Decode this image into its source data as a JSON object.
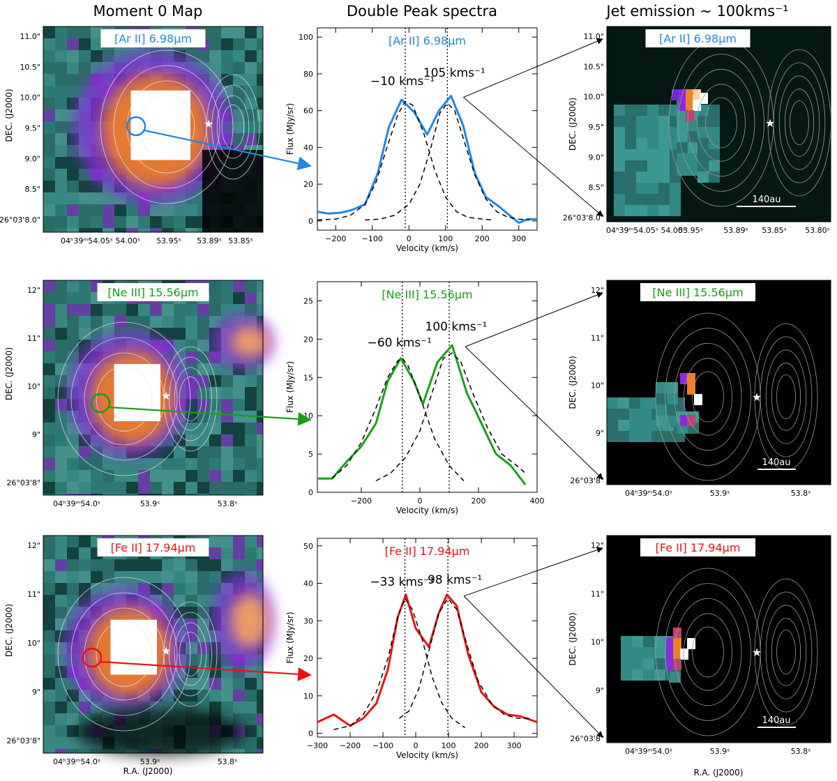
{
  "headers": {
    "col1": "Moment 0 Map",
    "col2": "Double Peak spectra",
    "col3": "Jet emission ~ 100kms⁻¹"
  },
  "xlabel_ra": "R.A. (J2000)",
  "ylabel_dec": "DEC. (J2000)",
  "scale_bar": "140au",
  "colors": {
    "ar": "#1e88e5",
    "ne": "#16a016",
    "fe": "#ee1111",
    "teal": "#2e7d78",
    "purple": "#8a2be2",
    "orange": "#f08020"
  },
  "rows": [
    {
      "line_label": "[Ar II] 6.98μm",
      "color_key": "ar",
      "map_yticks": [
        "11.0\"",
        "10.5\"",
        "10.0\"",
        "9.5\"",
        "9.0\"",
        "8.5\"",
        "26°03'8.0\""
      ],
      "map_xticks": [
        "04ʰ39ᵐ54.05ˢ 54.00ˢ",
        "53.95ˢ",
        "53.89ˢ",
        "53.85ˢ"
      ],
      "jet_xticks": [
        "04ʰ39ᵐ54.05ˢ 54.00ˢ",
        "53.95ˢ",
        "53.89ˢ",
        "53.85ˢ",
        "53.80ˢ"
      ]
    },
    {
      "line_label": "[Ne III] 15.56μm",
      "color_key": "ne",
      "map_yticks": [
        "12\"",
        "11\"",
        "10\"",
        "9\"",
        "26°03'8\""
      ],
      "map_xticks": [
        "04ʰ39ᵐ54.0ˢ",
        "53.9ˢ",
        "53.8ˢ"
      ],
      "jet_xticks": [
        "04ʰ39ᵐ54.0ˢ",
        "53.9ˢ",
        "53.8ˢ"
      ]
    },
    {
      "line_label": "[Fe II] 17.94μm",
      "color_key": "fe",
      "map_yticks": [
        "12\"",
        "11\"",
        "10\"",
        "9\"",
        "26°03'8\""
      ],
      "map_xticks": [
        "04ʰ39ᵐ54.0ˢ",
        "53.9ˢ",
        "53.8ˢ"
      ],
      "jet_xticks": [
        "04ʰ39ᵐ54.0ˢ",
        "53.9ˢ",
        "53.8ˢ"
      ]
    }
  ],
  "chart_data": [
    {
      "type": "line",
      "title": "[Ar II] 6.98μm",
      "xlabel": "Velocity (km/s)",
      "ylabel": "Flux (MJy/sr)",
      "xlim": [
        -250,
        350
      ],
      "ylim": [
        -5,
        105
      ],
      "xticks": [
        -200,
        -100,
        0,
        100,
        200,
        300
      ],
      "yticks": [
        0,
        20,
        40,
        60,
        80,
        100
      ],
      "peak_labels": [
        "−10 kms⁻¹",
        "105 kms⁻¹"
      ],
      "vlines": [
        -10,
        105
      ],
      "series": [
        {
          "name": "observed",
          "style": "solid",
          "x": [
            -250,
            -220,
            -185,
            -155,
            -120,
            -85,
            -55,
            -20,
            15,
            50,
            82,
            115,
            148,
            180,
            210,
            245,
            275,
            300,
            325,
            350
          ],
          "y": [
            5,
            4,
            4.5,
            6,
            9,
            26,
            51,
            66,
            59,
            47,
            60,
            68,
            52,
            26,
            13,
            8,
            3,
            -1,
            1,
            1
          ]
        },
        {
          "name": "gauss-blue",
          "style": "dashed",
          "x": [
            -250,
            -200,
            -160,
            -120,
            -90,
            -60,
            -30,
            -10,
            10,
            40,
            70,
            100,
            130,
            160,
            200,
            230
          ],
          "y": [
            0.5,
            1,
            3,
            9,
            21,
            40,
            58,
            65,
            63,
            48,
            28,
            13,
            5,
            2,
            1,
            0.5
          ]
        },
        {
          "name": "gauss-red",
          "style": "dashed",
          "x": [
            -120,
            -80,
            -40,
            0,
            30,
            60,
            85,
            105,
            125,
            150,
            180,
            210,
            240,
            270,
            300,
            330
          ],
          "y": [
            0.5,
            1,
            3,
            9,
            20,
            40,
            59,
            64,
            60,
            44,
            25,
            12,
            5,
            2,
            1,
            0.5
          ]
        }
      ]
    },
    {
      "type": "line",
      "title": "[Ne III] 15.56μm",
      "xlabel": "Velocity (km/s)",
      "ylabel": "Flux (MJy/sr)",
      "xlim": [
        -350,
        400
      ],
      "ylim": [
        0,
        27.5
      ],
      "xticks": [
        -200,
        0,
        200,
        400
      ],
      "yticks": [
        0,
        5,
        10,
        15,
        20,
        25
      ],
      "peak_labels": [
        "−60 kms⁻¹",
        "100 kms⁻¹"
      ],
      "vlines": [
        -60,
        100
      ],
      "series": [
        {
          "name": "observed",
          "style": "solid",
          "x": [
            -350,
            -300,
            -250,
            -200,
            -150,
            -110,
            -65,
            -20,
            10,
            60,
            110,
            160,
            210,
            260,
            310,
            360
          ],
          "y": [
            1.8,
            1.8,
            4,
            6,
            9,
            14.5,
            17.5,
            14.5,
            11.5,
            17,
            19.2,
            13,
            9,
            5,
            3.5,
            1
          ]
        },
        {
          "name": "gauss-blue",
          "style": "dashed",
          "x": [
            -300,
            -250,
            -200,
            -150,
            -110,
            -75,
            -60,
            -40,
            0,
            50,
            100,
            150
          ],
          "y": [
            1.8,
            3.5,
            6.5,
            11,
            15,
            17.2,
            17.5,
            16.5,
            12.5,
            7,
            3.5,
            1.5
          ]
        },
        {
          "name": "gauss-red",
          "style": "dashed",
          "x": [
            -150,
            -100,
            -50,
            0,
            50,
            80,
            110,
            140,
            180,
            230,
            280,
            330,
            360
          ],
          "y": [
            1.5,
            2.5,
            4.5,
            8,
            14,
            17.5,
            18.2,
            17,
            13,
            8.5,
            5,
            3.5,
            2.5
          ]
        }
      ]
    },
    {
      "type": "line",
      "title": "[Fe II] 17.94μm",
      "xlabel": "Velocity (km/s)",
      "ylabel": "Flux (MJy/sr)",
      "xlim": [
        -300,
        370
      ],
      "ylim": [
        -1,
        52
      ],
      "xticks": [
        -300,
        -200,
        -100,
        0,
        100,
        200,
        300
      ],
      "yticks": [
        0,
        10,
        20,
        30,
        40,
        50
      ],
      "peak_labels": [
        "−33 kms⁻¹",
        "98 kms⁻¹"
      ],
      "vlines": [
        -33,
        98
      ],
      "series": [
        {
          "name": "observed",
          "style": "solid",
          "x": [
            -300,
            -250,
            -200,
            -160,
            -120,
            -85,
            -55,
            -30,
            0,
            40,
            70,
            95,
            125,
            160,
            200,
            240,
            280,
            320,
            370
          ],
          "y": [
            3,
            5,
            2,
            4,
            8,
            17,
            31,
            37,
            28,
            23,
            32,
            37,
            34,
            21,
            11,
            7,
            5,
            4.5,
            3
          ]
        },
        {
          "name": "gauss-blue",
          "style": "dashed",
          "x": [
            -250,
            -200,
            -160,
            -120,
            -85,
            -55,
            -33,
            -10,
            20,
            50,
            80,
            110,
            150
          ],
          "y": [
            1,
            2,
            5,
            11,
            20,
            31,
            36,
            33,
            25,
            15,
            8,
            4,
            1.5
          ]
        },
        {
          "name": "gauss-red",
          "style": "dashed",
          "x": [
            -50,
            -20,
            10,
            40,
            70,
            98,
            125,
            155,
            190,
            230,
            270,
            310,
            350
          ],
          "y": [
            4,
            6,
            12,
            22,
            32,
            36,
            33,
            24,
            14,
            8,
            5,
            4,
            4
          ]
        }
      ]
    }
  ]
}
